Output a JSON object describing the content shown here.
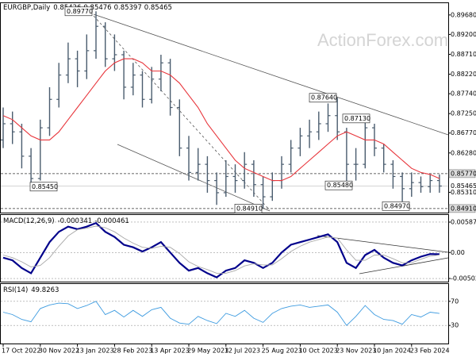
{
  "watermark": "ActionForex.com",
  "chart_data": [
    {
      "type": "ohlc",
      "title": "EURGBP,Daily",
      "header_values": [
        0.85426,
        0.85476,
        0.85397,
        0.85465
      ],
      "color": "#4a5c6e",
      "open": [
        0.866,
        0.87,
        0.868,
        0.862,
        0.8565,
        0.869,
        0.876,
        0.882,
        0.886,
        0.883,
        0.888,
        0.894,
        0.886,
        0.887,
        0.879,
        0.882,
        0.876,
        0.881,
        0.885,
        0.874,
        0.864,
        0.858,
        0.86,
        0.856,
        0.853,
        0.857,
        0.856,
        0.86,
        0.855,
        0.852,
        0.856,
        0.86,
        0.864,
        0.867,
        0.868,
        0.87,
        0.872,
        0.868,
        0.86,
        0.86,
        0.869,
        0.864,
        0.86,
        0.857,
        0.854,
        0.8555,
        0.8545,
        0.856
      ],
      "high": [
        0.874,
        0.873,
        0.87,
        0.864,
        0.871,
        0.879,
        0.885,
        0.89,
        0.888,
        0.892,
        0.8977,
        0.895,
        0.892,
        0.888,
        0.885,
        0.883,
        0.884,
        0.887,
        0.886,
        0.876,
        0.867,
        0.864,
        0.862,
        0.858,
        0.861,
        0.86,
        0.863,
        0.861,
        0.857,
        0.858,
        0.862,
        0.866,
        0.869,
        0.871,
        0.873,
        0.875,
        0.8764,
        0.869,
        0.864,
        0.8713,
        0.87,
        0.865,
        0.861,
        0.858,
        0.858,
        0.857,
        0.8575,
        0.8575
      ],
      "low": [
        0.864,
        0.865,
        0.859,
        0.8545,
        0.856,
        0.867,
        0.874,
        0.88,
        0.879,
        0.881,
        0.886,
        0.884,
        0.883,
        0.876,
        0.877,
        0.874,
        0.875,
        0.878,
        0.872,
        0.862,
        0.856,
        0.856,
        0.853,
        0.85,
        0.852,
        0.853,
        0.854,
        0.852,
        0.8491,
        0.851,
        0.854,
        0.858,
        0.862,
        0.864,
        0.866,
        0.868,
        0.866,
        0.8548,
        0.856,
        0.859,
        0.862,
        0.858,
        0.854,
        0.8497,
        0.852,
        0.853,
        0.853,
        0.853
      ],
      "close": [
        0.87,
        0.868,
        0.862,
        0.8565,
        0.869,
        0.876,
        0.882,
        0.886,
        0.883,
        0.888,
        0.894,
        0.886,
        0.887,
        0.879,
        0.882,
        0.876,
        0.881,
        0.885,
        0.874,
        0.864,
        0.858,
        0.86,
        0.856,
        0.853,
        0.857,
        0.856,
        0.86,
        0.855,
        0.852,
        0.856,
        0.86,
        0.864,
        0.867,
        0.868,
        0.87,
        0.872,
        0.868,
        0.86,
        0.86,
        0.869,
        0.864,
        0.86,
        0.857,
        0.854,
        0.8555,
        0.8545,
        0.856,
        0.85465
      ],
      "series": [
        {
          "color": "#e8363c",
          "values": [
            0.872,
            0.871,
            0.869,
            0.867,
            0.866,
            0.866,
            0.868,
            0.871,
            0.874,
            0.877,
            0.88,
            0.883,
            0.885,
            0.886,
            0.886,
            0.885,
            0.883,
            0.883,
            0.882,
            0.88,
            0.877,
            0.874,
            0.87,
            0.867,
            0.864,
            0.861,
            0.859,
            0.858,
            0.857,
            0.856,
            0.856,
            0.857,
            0.859,
            0.861,
            0.863,
            0.865,
            0.867,
            0.868,
            0.867,
            0.866,
            0.866,
            0.865,
            0.863,
            0.861,
            0.859,
            0.858,
            0.8575,
            0.8565
          ]
        }
      ],
      "ylim": [
        0.8481,
        0.8999
      ],
      "yticks": [
        {
          "value": 0.8968,
          "label": "0.89680"
        },
        {
          "value": 0.892,
          "label": "0.89200"
        },
        {
          "value": 0.8871,
          "label": "0.88710"
        },
        {
          "value": 0.8822,
          "label": "0.88220"
        },
        {
          "value": 0.8774,
          "label": "0.87740"
        },
        {
          "value": 0.8725,
          "label": "0.87250"
        },
        {
          "value": 0.8677,
          "label": "0.86770"
        },
        {
          "value": 0.8628,
          "label": "0.86280"
        },
        {
          "value": 0.8531,
          "label": "0.85310"
        }
      ],
      "levels": [
        {
          "value": 0.8577,
          "label": "0.85770"
        },
        {
          "value": 0.8491,
          "label": "0.84910"
        }
      ],
      "current": {
        "value": 0.85465,
        "label": "0.85465"
      },
      "annotations": [
        {
          "value": 0.8977,
          "label": "0.89770"
        },
        {
          "value": 0.8764,
          "label": "0.87640"
        },
        {
          "value": 0.8713,
          "label": "0.87130"
        },
        {
          "value": 0.8545,
          "label": "0.85450"
        },
        {
          "value": 0.8548,
          "label": "0.85480"
        },
        {
          "value": 0.8491,
          "label": "0.84910"
        },
        {
          "value": 0.8497,
          "label": "0.84970"
        }
      ]
    },
    {
      "type": "line",
      "title": "MACD(12,26,9)",
      "header_values": [
        -0.000341,
        -0.000461
      ],
      "series": [
        {
          "color": "#00008b",
          "values": [
            -0.001,
            -0.0015,
            -0.003,
            -0.004,
            -0.001,
            0.002,
            0.004,
            0.005,
            0.0045,
            0.005,
            0.0057,
            0.004,
            0.003,
            0.0015,
            0.001,
            0.0002,
            0.001,
            0.002,
            0.0,
            -0.002,
            -0.0035,
            -0.003,
            -0.004,
            -0.0048,
            -0.0035,
            -0.003,
            -0.0015,
            -0.002,
            -0.003,
            -0.002,
            0.0,
            0.0015,
            0.002,
            0.0025,
            0.003,
            0.0035,
            0.002,
            -0.002,
            -0.003,
            -0.0005,
            0.0005,
            -0.001,
            -0.002,
            -0.0025,
            -0.0015,
            -0.0008,
            -0.0003,
            -0.000341
          ]
        },
        {
          "color": "#a8a8a8",
          "values": [
            -0.0005,
            -0.001,
            -0.0018,
            -0.0028,
            -0.0025,
            -0.001,
            0.0012,
            0.0032,
            0.0044,
            0.0047,
            0.0051,
            0.0048,
            0.004,
            0.0028,
            0.0018,
            0.001,
            0.0008,
            0.0012,
            0.001,
            -0.0002,
            -0.0018,
            -0.0027,
            -0.0033,
            -0.004,
            -0.004,
            -0.0035,
            -0.0026,
            -0.0022,
            -0.0024,
            -0.0024,
            -0.0012,
            0.0002,
            0.0012,
            0.002,
            0.0025,
            0.003,
            0.0028,
            0.0005,
            -0.0015,
            -0.0015,
            -0.0005,
            -0.0005,
            -0.0012,
            -0.002,
            -0.002,
            -0.0013,
            -0.0007,
            -0.000461
          ]
        }
      ],
      "ylim": [
        -0.00563,
        0.0074
      ],
      "yticks": [
        0.00587,
        {
          "value": 0,
          "label": "0.00"
        },
        -0.005021
      ]
    },
    {
      "type": "line",
      "title": "RSI(14)",
      "header_values": [
        49.8263
      ],
      "series": [
        {
          "color": "#3d9be0",
          "values": [
            52,
            48,
            40,
            36,
            58,
            64,
            67,
            66,
            58,
            63,
            70,
            48,
            55,
            44,
            55,
            45,
            56,
            60,
            42,
            34,
            32,
            45,
            38,
            33,
            50,
            45,
            55,
            42,
            35,
            50,
            58,
            62,
            64,
            60,
            62,
            64,
            52,
            30,
            45,
            63,
            48,
            40,
            38,
            32,
            48,
            44,
            52,
            49.8263
          ]
        }
      ],
      "ylim": [
        0,
        100
      ],
      "yticks": [
        70,
        30
      ],
      "categories": [
        "17 Oct 2022",
        null,
        null,
        null,
        "30 Nov 2022",
        null,
        null,
        null,
        "13 Jan 2023",
        null,
        null,
        null,
        "28 Feb 2023",
        null,
        null,
        null,
        "13 Apr 2023",
        null,
        null,
        null,
        "29 May 2023",
        null,
        null,
        null,
        "12 Jul 2023",
        null,
        null,
        null,
        "25 Aug 2023",
        null,
        null,
        null,
        "10 Oct 2023",
        null,
        null,
        null,
        "23 Nov 2023",
        null,
        null,
        null,
        "10 Jan 2024",
        null,
        null,
        null,
        "23 Feb 2024",
        null,
        null,
        null
      ]
    }
  ]
}
